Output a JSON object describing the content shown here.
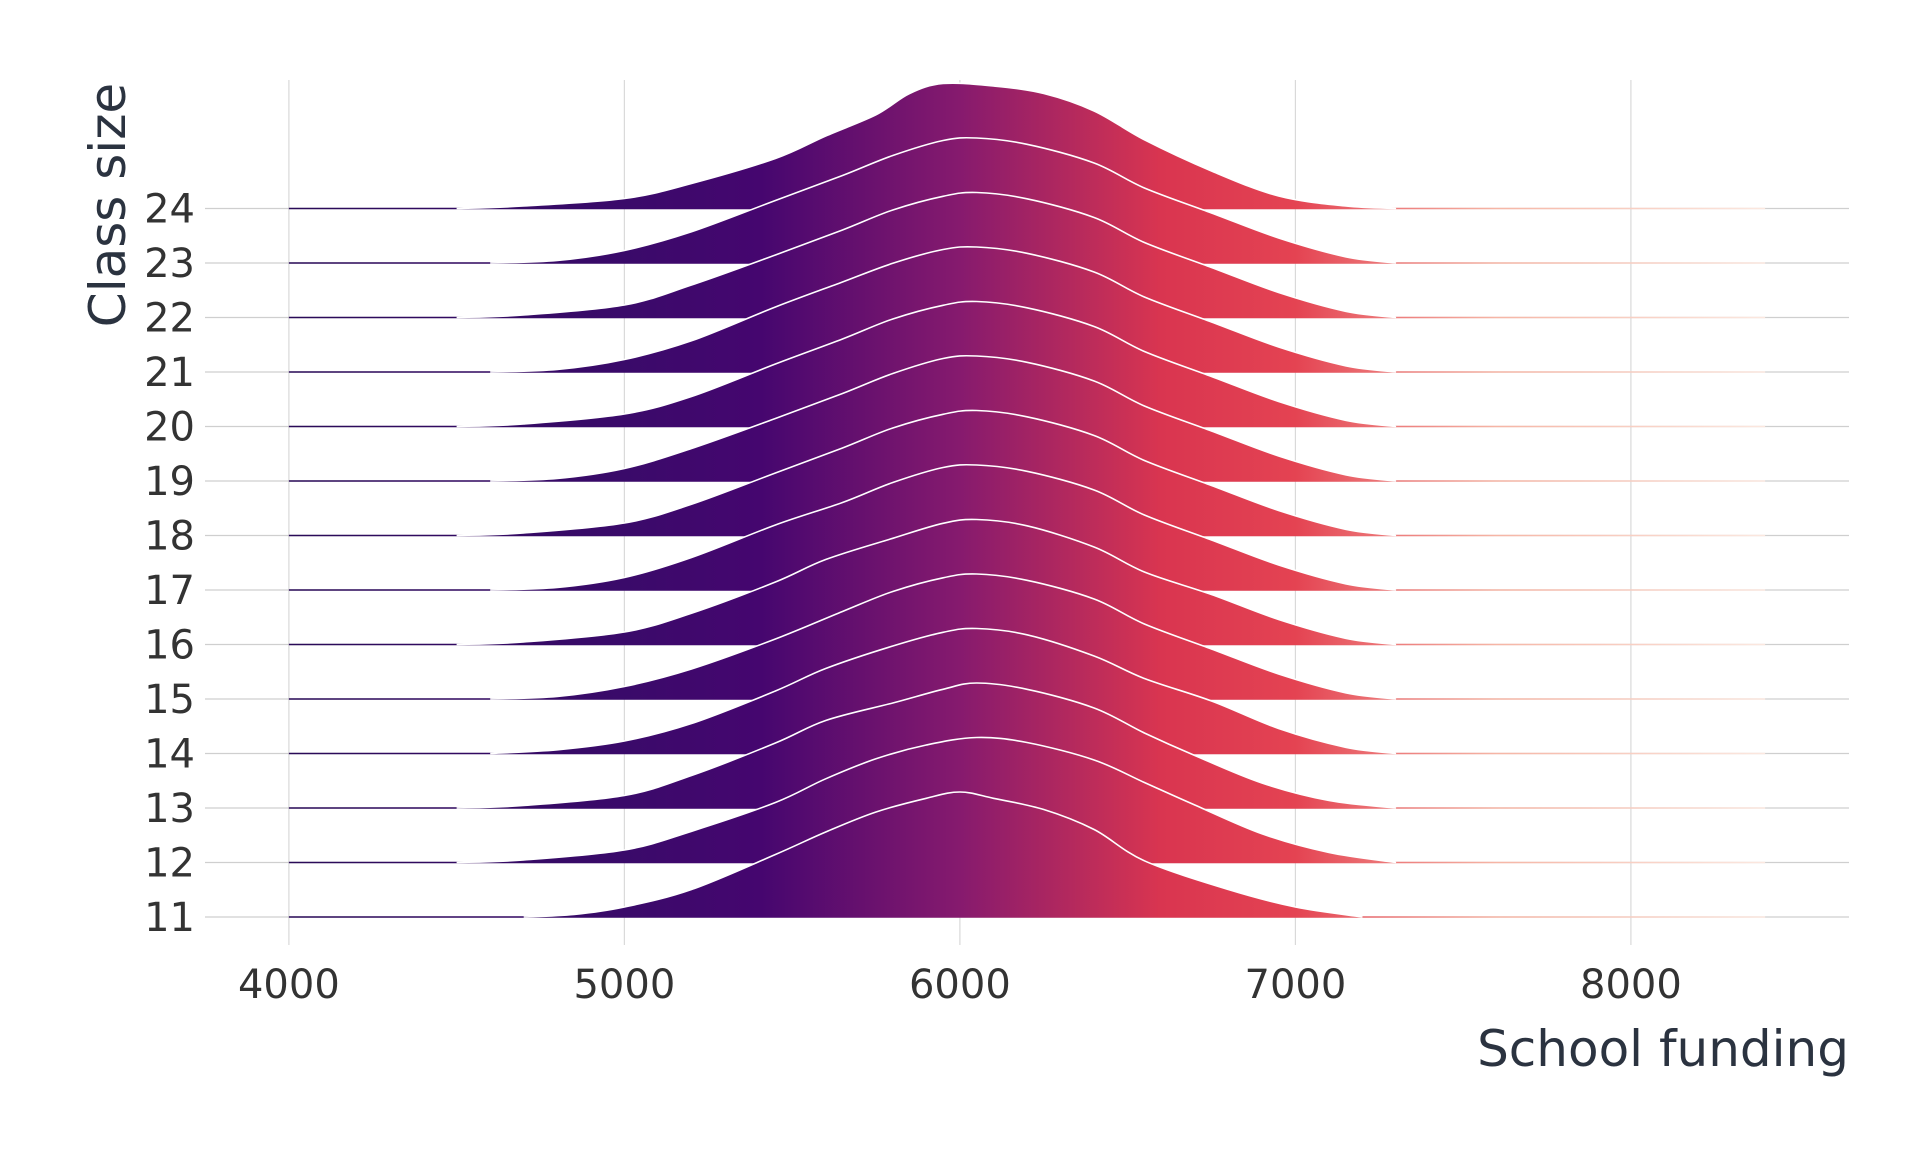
{
  "chart_data": {
    "type": "ridgeline",
    "xlabel": "School funding",
    "ylabel": "Class size",
    "xlim": [
      3750,
      8650
    ],
    "x_ticks": [
      4000,
      5000,
      6000,
      7000,
      8000
    ],
    "categories": [
      "11",
      "12",
      "13",
      "14",
      "15",
      "16",
      "17",
      "18",
      "19",
      "20",
      "21",
      "22",
      "23",
      "24"
    ],
    "grid": true,
    "legend": "none",
    "fill_gradient": {
      "axis": "x",
      "stops": [
        {
          "x": 4000,
          "color": "#2a0b58"
        },
        {
          "x": 5000,
          "color": "#3a0a6a"
        },
        {
          "x": 5400,
          "color": "#45066f"
        },
        {
          "x": 6000,
          "color": "#861a6e"
        },
        {
          "x": 6600,
          "color": "#d93550"
        },
        {
          "x": 7000,
          "color": "#e44352"
        },
        {
          "x": 7600,
          "color": "#f6b6a6"
        },
        {
          "x": 8400,
          "color": "#fbe8e0"
        }
      ]
    },
    "series": [
      {
        "name": "11",
        "x": [
          4700,
          4850,
          5000,
          5200,
          5450,
          5600,
          5750,
          5900,
          6000,
          6100,
          6250,
          6400,
          6550,
          6800,
          7000,
          7200
        ],
        "y": [
          0.0,
          0.02,
          0.08,
          0.22,
          0.5,
          0.68,
          0.84,
          0.95,
          1.0,
          0.95,
          0.86,
          0.7,
          0.45,
          0.22,
          0.08,
          0.0
        ]
      },
      {
        "name": "12",
        "x": [
          4500,
          4700,
          5000,
          5200,
          5450,
          5600,
          5750,
          5900,
          6050,
          6200,
          6400,
          6550,
          6700,
          6900,
          7100,
          7300
        ],
        "y": [
          0.0,
          0.02,
          0.1,
          0.25,
          0.48,
          0.67,
          0.83,
          0.94,
          1.0,
          0.96,
          0.82,
          0.64,
          0.46,
          0.23,
          0.08,
          0.0
        ]
      },
      {
        "name": "13",
        "x": [
          4500,
          4700,
          5000,
          5200,
          5450,
          5600,
          5800,
          5950,
          6050,
          6200,
          6400,
          6550,
          6700,
          6900,
          7100,
          7300
        ],
        "y": [
          0.0,
          0.02,
          0.1,
          0.26,
          0.52,
          0.7,
          0.84,
          0.95,
          1.0,
          0.95,
          0.8,
          0.6,
          0.42,
          0.2,
          0.06,
          0.0
        ]
      },
      {
        "name": "14",
        "x": [
          4600,
          4800,
          5000,
          5200,
          5450,
          5600,
          5800,
          5950,
          6050,
          6200,
          6400,
          6550,
          6750,
          6950,
          7150,
          7300
        ],
        "y": [
          0.0,
          0.03,
          0.1,
          0.24,
          0.5,
          0.68,
          0.86,
          0.97,
          1.0,
          0.95,
          0.78,
          0.6,
          0.42,
          0.2,
          0.05,
          0.0
        ]
      },
      {
        "name": "15",
        "x": [
          4600,
          4800,
          5000,
          5200,
          5450,
          5650,
          5800,
          5950,
          6050,
          6200,
          6400,
          6550,
          6750,
          6950,
          7150,
          7300
        ],
        "y": [
          0.0,
          0.02,
          0.1,
          0.24,
          0.48,
          0.7,
          0.86,
          0.97,
          1.0,
          0.95,
          0.8,
          0.6,
          0.4,
          0.2,
          0.05,
          0.0
        ]
      },
      {
        "name": "16",
        "x": [
          4500,
          4700,
          5000,
          5200,
          5450,
          5600,
          5800,
          5950,
          6050,
          6200,
          6400,
          6550,
          6750,
          6950,
          7150,
          7300
        ],
        "y": [
          0.0,
          0.02,
          0.1,
          0.25,
          0.5,
          0.68,
          0.85,
          0.97,
          1.0,
          0.95,
          0.78,
          0.58,
          0.4,
          0.2,
          0.05,
          0.0
        ]
      },
      {
        "name": "17",
        "x": [
          4600,
          4800,
          5000,
          5200,
          5450,
          5650,
          5800,
          5950,
          6050,
          6200,
          6400,
          6550,
          6750,
          6950,
          7150,
          7300
        ],
        "y": [
          0.0,
          0.02,
          0.1,
          0.26,
          0.52,
          0.7,
          0.86,
          0.98,
          1.0,
          0.95,
          0.8,
          0.6,
          0.4,
          0.2,
          0.05,
          0.0
        ]
      },
      {
        "name": "18",
        "x": [
          4500,
          4700,
          5000,
          5200,
          5450,
          5650,
          5800,
          5950,
          6050,
          6200,
          6400,
          6550,
          6750,
          6950,
          7150,
          7300
        ],
        "y": [
          0.0,
          0.02,
          0.1,
          0.25,
          0.5,
          0.7,
          0.86,
          0.97,
          1.0,
          0.95,
          0.8,
          0.6,
          0.4,
          0.2,
          0.05,
          0.0
        ]
      },
      {
        "name": "19",
        "x": [
          4600,
          4800,
          5000,
          5200,
          5450,
          5650,
          5800,
          5950,
          6050,
          6200,
          6400,
          6550,
          6750,
          6950,
          7150,
          7300
        ],
        "y": [
          0.0,
          0.02,
          0.1,
          0.26,
          0.5,
          0.7,
          0.86,
          0.98,
          1.0,
          0.95,
          0.8,
          0.6,
          0.4,
          0.2,
          0.05,
          0.0
        ]
      },
      {
        "name": "20",
        "x": [
          4500,
          4700,
          5000,
          5200,
          5450,
          5650,
          5800,
          5950,
          6050,
          6200,
          6400,
          6550,
          6750,
          6950,
          7150,
          7300
        ],
        "y": [
          0.0,
          0.02,
          0.1,
          0.24,
          0.5,
          0.7,
          0.86,
          0.97,
          1.0,
          0.95,
          0.8,
          0.6,
          0.4,
          0.2,
          0.05,
          0.0
        ]
      },
      {
        "name": "21",
        "x": [
          4600,
          4800,
          5000,
          5200,
          5450,
          5650,
          5800,
          5950,
          6050,
          6200,
          6400,
          6550,
          6750,
          6950,
          7150,
          7300
        ],
        "y": [
          0.0,
          0.02,
          0.1,
          0.25,
          0.52,
          0.72,
          0.87,
          0.98,
          1.0,
          0.95,
          0.8,
          0.6,
          0.4,
          0.2,
          0.05,
          0.0
        ]
      },
      {
        "name": "22",
        "x": [
          4500,
          4700,
          5000,
          5200,
          5450,
          5650,
          5800,
          5950,
          6050,
          6200,
          6400,
          6550,
          6750,
          6950,
          7150,
          7300
        ],
        "y": [
          0.0,
          0.02,
          0.1,
          0.26,
          0.5,
          0.7,
          0.86,
          0.97,
          1.0,
          0.95,
          0.8,
          0.6,
          0.4,
          0.2,
          0.05,
          0.0
        ]
      },
      {
        "name": "23",
        "x": [
          4600,
          4800,
          5000,
          5200,
          5450,
          5650,
          5800,
          5950,
          6050,
          6200,
          6400,
          6550,
          6750,
          6950,
          7150,
          7300
        ],
        "y": [
          0.0,
          0.02,
          0.1,
          0.25,
          0.5,
          0.7,
          0.86,
          0.98,
          1.0,
          0.95,
          0.8,
          0.6,
          0.4,
          0.2,
          0.05,
          0.0
        ]
      },
      {
        "name": "24",
        "x": [
          4500,
          4700,
          5000,
          5200,
          5450,
          5600,
          5750,
          5850,
          5950,
          6100,
          6250,
          6400,
          6550,
          6750,
          6950,
          7150,
          7300
        ],
        "y": [
          0.0,
          0.02,
          0.08,
          0.2,
          0.4,
          0.58,
          0.75,
          0.92,
          1.0,
          0.98,
          0.92,
          0.78,
          0.55,
          0.3,
          0.1,
          0.02,
          0.0
        ]
      }
    ]
  }
}
